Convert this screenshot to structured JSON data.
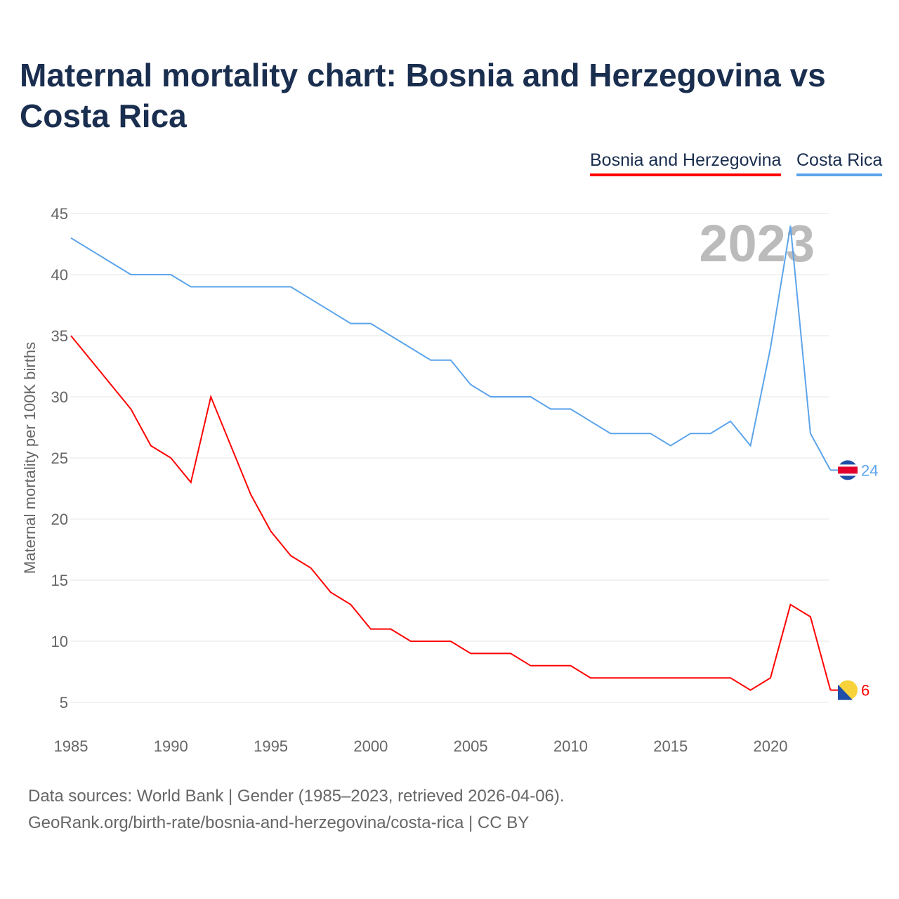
{
  "title": "Maternal mortality chart: Bosnia and Herzegovina vs Costa Rica",
  "footer": {
    "line1": "Data sources: World Bank | Gender (1985–2023, retrieved 2026-04-06).",
    "line2": "GeoRank.org/birth-rate/bosnia-and-herzegovina/costa-rica | CC BY"
  },
  "chart_data": {
    "type": "line",
    "title": "Maternal mortality chart: Bosnia and Herzegovina vs Costa Rica",
    "ylabel": "Maternal mortality per 100K births",
    "xlabel": "",
    "ylim": [
      3,
      46
    ],
    "xlim": [
      1985,
      2023
    ],
    "yticks": [
      5,
      10,
      15,
      20,
      25,
      30,
      35,
      40,
      45
    ],
    "xticks": [
      1985,
      1990,
      1995,
      2000,
      2005,
      2010,
      2015,
      2020
    ],
    "annotation": "2023",
    "legend": "top-right",
    "grid": true,
    "x": [
      1985,
      1986,
      1987,
      1988,
      1989,
      1990,
      1991,
      1992,
      1993,
      1994,
      1995,
      1996,
      1997,
      1998,
      1999,
      2000,
      2001,
      2002,
      2003,
      2004,
      2005,
      2006,
      2007,
      2008,
      2009,
      2010,
      2011,
      2012,
      2013,
      2014,
      2015,
      2016,
      2017,
      2018,
      2019,
      2020,
      2021,
      2022,
      2023
    ],
    "series": [
      {
        "name": "Bosnia and Herzegovina",
        "color": "#ff0000",
        "end_label": "6",
        "values": [
          35,
          33,
          31,
          29,
          26,
          25,
          23,
          30,
          26,
          22,
          19,
          17,
          16,
          14,
          13,
          11,
          11,
          10,
          10,
          10,
          9,
          9,
          9,
          8,
          8,
          8,
          7,
          7,
          7,
          7,
          7,
          7,
          7,
          7,
          6,
          7,
          13,
          12,
          6
        ]
      },
      {
        "name": "Costa Rica",
        "color": "#5ba4eb",
        "end_label": "24",
        "values": [
          43,
          42,
          41,
          40,
          40,
          40,
          39,
          39,
          39,
          39,
          39,
          39,
          38,
          37,
          36,
          36,
          35,
          34,
          33,
          33,
          31,
          30,
          30,
          30,
          29,
          29,
          28,
          27,
          27,
          27,
          26,
          27,
          27,
          28,
          26,
          34,
          44,
          27,
          24
        ]
      }
    ]
  }
}
